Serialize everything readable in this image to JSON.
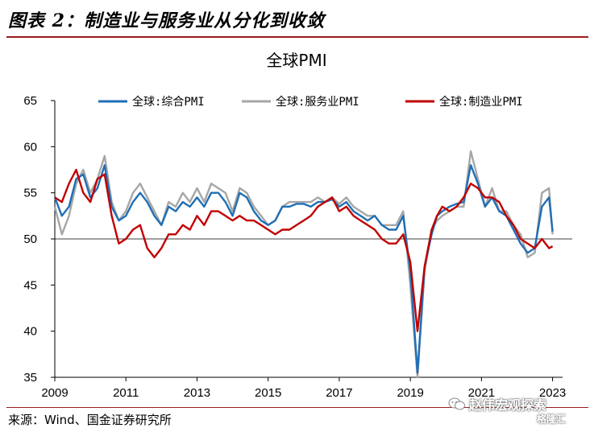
{
  "header": {
    "figure_title": "图表 2：制造业与服务业从分化到收敛"
  },
  "footer": {
    "source": "来源：Wind、国金证券研究所"
  },
  "watermark": {
    "account": "赵伟宏观探索",
    "platform": "格隆汇"
  },
  "colors": {
    "composite": "#1f6fb5",
    "services": "#a6a6a6",
    "manufacturing": "#c00000",
    "rule": "#9b1b1b"
  },
  "chart_data": {
    "type": "line",
    "title": "全球PMI",
    "ylim": [
      35,
      65
    ],
    "y_ticks": [
      "35",
      "40",
      "45",
      "50",
      "55",
      "60",
      "65"
    ],
    "xlim": [
      2009.0,
      2023.1
    ],
    "x_ticks": [
      "2009",
      "2011",
      "2013",
      "2015",
      "2017",
      "2019",
      "2021",
      "2023"
    ],
    "reference_line": 50,
    "legend_position": "top",
    "series": [
      {
        "name": "全球:综合PMI",
        "x": [
          2009.0,
          2009.2,
          2009.4,
          2009.6,
          2009.8,
          2010.0,
          2010.2,
          2010.4,
          2010.6,
          2010.8,
          2011.0,
          2011.2,
          2011.4,
          2011.6,
          2011.8,
          2012.0,
          2012.2,
          2012.4,
          2012.6,
          2012.8,
          2013.0,
          2013.2,
          2013.4,
          2013.6,
          2013.8,
          2014.0,
          2014.2,
          2014.4,
          2014.6,
          2014.8,
          2015.0,
          2015.2,
          2015.4,
          2015.6,
          2015.8,
          2016.0,
          2016.2,
          2016.4,
          2016.6,
          2016.8,
          2017.0,
          2017.2,
          2017.4,
          2017.6,
          2017.8,
          2018.0,
          2018.2,
          2018.4,
          2018.6,
          2018.8,
          2019.0,
          2019.2,
          2019.4,
          2019.6,
          2019.75,
          2019.9,
          2020.1,
          2020.3,
          2020.5,
          2020.7,
          2020.9,
          2021.1,
          2021.3,
          2021.5,
          2021.7,
          2021.9,
          2022.1,
          2022.3,
          2022.5,
          2022.7,
          2022.9,
          2023.0
        ],
        "values": [
          54.5,
          52.5,
          53.5,
          56.5,
          57.0,
          54.5,
          55.5,
          58.0,
          53.5,
          52.0,
          52.5,
          54.0,
          55.0,
          54.0,
          52.5,
          51.5,
          53.5,
          53.0,
          54.0,
          53.5,
          54.5,
          53.5,
          55.0,
          55.0,
          54.0,
          52.5,
          55.0,
          54.5,
          53.0,
          52.0,
          51.5,
          52.0,
          53.5,
          53.5,
          53.8,
          53.8,
          53.5,
          54.0,
          54.0,
          54.3,
          53.5,
          54.0,
          53.0,
          52.5,
          52.0,
          52.5,
          51.5,
          51.0,
          51.0,
          52.5,
          46.5,
          35.5,
          47.0,
          50.5,
          52.5,
          53.0,
          53.5,
          53.8,
          54.0,
          58.0,
          56.0,
          53.5,
          54.5,
          53.0,
          52.5,
          51.0,
          49.5,
          48.5,
          49.0,
          53.5,
          54.5,
          50.8
        ]
      },
      {
        "name": "全球:服务业PMI",
        "x": [
          2009.0,
          2009.2,
          2009.4,
          2009.6,
          2009.8,
          2010.0,
          2010.2,
          2010.4,
          2010.6,
          2010.8,
          2011.0,
          2011.2,
          2011.4,
          2011.6,
          2011.8,
          2012.0,
          2012.2,
          2012.4,
          2012.6,
          2012.8,
          2013.0,
          2013.2,
          2013.4,
          2013.6,
          2013.8,
          2014.0,
          2014.2,
          2014.4,
          2014.6,
          2014.8,
          2015.0,
          2015.2,
          2015.4,
          2015.6,
          2015.8,
          2016.0,
          2016.2,
          2016.4,
          2016.6,
          2016.8,
          2017.0,
          2017.2,
          2017.4,
          2017.6,
          2017.8,
          2018.0,
          2018.2,
          2018.4,
          2018.6,
          2018.8,
          2019.0,
          2019.2,
          2019.4,
          2019.6,
          2019.75,
          2019.9,
          2020.1,
          2020.3,
          2020.5,
          2020.7,
          2020.9,
          2021.1,
          2021.3,
          2021.5,
          2021.7,
          2021.9,
          2022.1,
          2022.3,
          2022.5,
          2022.7,
          2022.9,
          2023.0
        ],
        "values": [
          53.5,
          50.5,
          52.5,
          56.0,
          57.5,
          55.0,
          56.5,
          59.0,
          54.0,
          52.0,
          53.0,
          55.0,
          56.0,
          54.5,
          53.0,
          51.5,
          54.0,
          53.5,
          55.0,
          54.0,
          55.5,
          54.0,
          56.0,
          55.5,
          55.0,
          53.0,
          55.5,
          55.0,
          53.5,
          52.5,
          51.5,
          52.0,
          53.5,
          54.0,
          54.0,
          54.0,
          54.0,
          54.5,
          54.0,
          54.5,
          53.8,
          54.5,
          53.5,
          53.0,
          52.5,
          52.5,
          51.5,
          51.5,
          51.5,
          53.0,
          45.0,
          35.0,
          46.5,
          51.0,
          52.0,
          52.5,
          53.0,
          53.5,
          53.5,
          59.5,
          56.5,
          53.5,
          55.5,
          53.0,
          53.0,
          51.5,
          50.5,
          48.0,
          48.5,
          55.0,
          55.5,
          50.5
        ]
      },
      {
        "name": "全球:制造业PMI",
        "x": [
          2009.0,
          2009.2,
          2009.4,
          2009.6,
          2009.8,
          2010.0,
          2010.2,
          2010.4,
          2010.6,
          2010.8,
          2011.0,
          2011.2,
          2011.4,
          2011.6,
          2011.8,
          2012.0,
          2012.2,
          2012.4,
          2012.6,
          2012.8,
          2013.0,
          2013.2,
          2013.4,
          2013.6,
          2013.8,
          2014.0,
          2014.2,
          2014.4,
          2014.6,
          2014.8,
          2015.0,
          2015.2,
          2015.4,
          2015.6,
          2015.8,
          2016.0,
          2016.2,
          2016.4,
          2016.6,
          2016.8,
          2017.0,
          2017.2,
          2017.4,
          2017.6,
          2017.8,
          2018.0,
          2018.2,
          2018.4,
          2018.6,
          2018.8,
          2019.0,
          2019.2,
          2019.4,
          2019.6,
          2019.75,
          2019.9,
          2020.1,
          2020.3,
          2020.5,
          2020.7,
          2020.9,
          2021.1,
          2021.3,
          2021.5,
          2021.7,
          2021.9,
          2022.1,
          2022.3,
          2022.5,
          2022.7,
          2022.9,
          2023.0
        ],
        "values": [
          54.5,
          54.0,
          56.0,
          57.5,
          55.0,
          54.0,
          56.5,
          57.0,
          52.5,
          49.5,
          50.0,
          51.0,
          51.5,
          49.0,
          48.0,
          49.0,
          50.5,
          50.5,
          51.5,
          51.0,
          52.5,
          51.5,
          53.0,
          53.0,
          52.5,
          52.0,
          52.5,
          52.0,
          52.0,
          51.5,
          51.0,
          50.5,
          51.0,
          51.0,
          51.5,
          52.0,
          52.5,
          53.5,
          54.0,
          54.5,
          53.0,
          53.5,
          52.5,
          52.0,
          51.5,
          51.0,
          50.0,
          49.5,
          49.5,
          50.5,
          47.5,
          40.0,
          47.0,
          51.0,
          52.5,
          53.5,
          53.0,
          53.5,
          54.5,
          56.0,
          55.5,
          54.5,
          54.5,
          54.0,
          52.5,
          51.5,
          50.0,
          49.5,
          49.0,
          50.0,
          49.0,
          49.2
        ]
      }
    ]
  }
}
